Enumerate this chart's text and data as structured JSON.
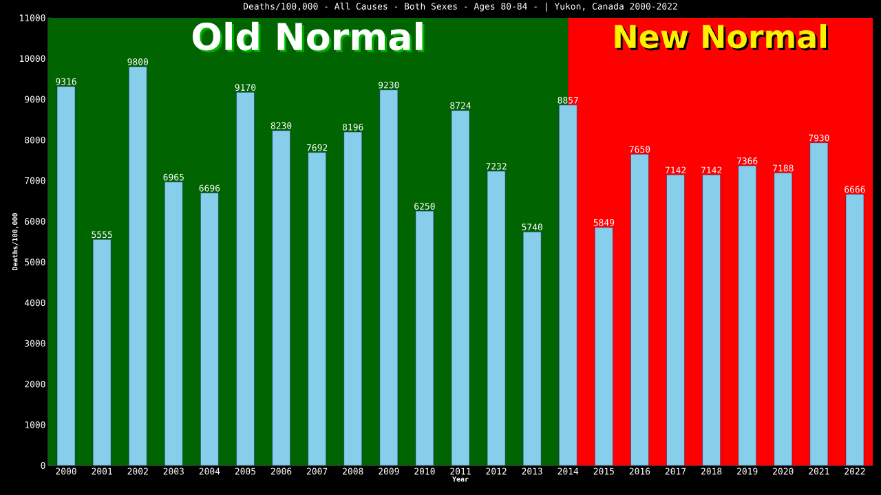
{
  "chart_data": {
    "type": "bar",
    "title": "Deaths/100,000 - All Causes - Both Sexes - Ages 80-84 -  | Yukon, Canada 2000-2022",
    "xlabel": "Year",
    "ylabel": "Deaths/100,000",
    "categories": [
      "2000",
      "2001",
      "2002",
      "2003",
      "2004",
      "2005",
      "2006",
      "2007",
      "2008",
      "2009",
      "2010",
      "2011",
      "2012",
      "2013",
      "2014",
      "2015",
      "2016",
      "2017",
      "2018",
      "2019",
      "2020",
      "2021",
      "2022"
    ],
    "values": [
      9316,
      5555,
      9800,
      6965,
      6696,
      9170,
      8230,
      7692,
      8196,
      9230,
      6250,
      8724,
      7232,
      5740,
      8857,
      5849,
      7650,
      7142,
      7142,
      7366,
      7188,
      7930,
      6666
    ],
    "color": "#87ceeb",
    "data_labels": true,
    "grid": false,
    "ylim": [
      0,
      11000
    ],
    "yticks": [
      0,
      1000,
      2000,
      3000,
      4000,
      5000,
      6000,
      7000,
      8000,
      9000,
      10000,
      11000
    ],
    "bands": [
      {
        "axis": "x",
        "from": "2000",
        "to": "2014",
        "label": "Old Normal",
        "color": "#006400"
      },
      {
        "axis": "x",
        "from": "2014",
        "to": "2022",
        "label": "New Normal",
        "color": "#ff0000"
      }
    ]
  }
}
